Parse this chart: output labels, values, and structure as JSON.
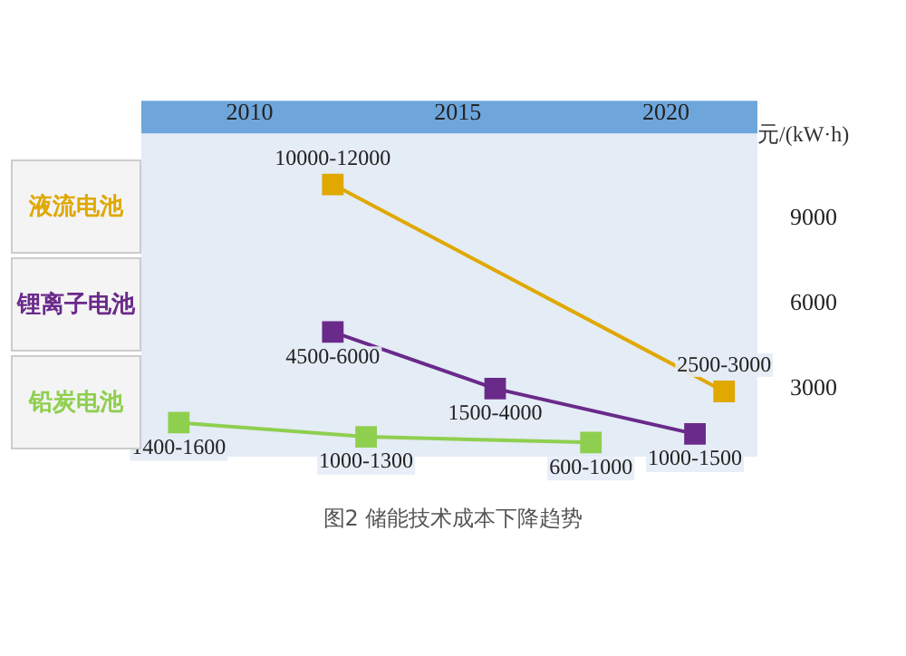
{
  "chart_data": {
    "type": "line",
    "ylabel": "元/(kW·h)",
    "annotations": [
      "图2 储能技术成本下降趋势"
    ],
    "xlim": [
      2007.4,
      2022.2
    ],
    "xticks": [
      2010,
      2015,
      2020
    ],
    "ylim": [
      600,
      12000
    ],
    "yticks": [
      3000,
      6000,
      9000
    ],
    "legend": "left",
    "marker": "square",
    "line_style": "solid",
    "series": [
      {
        "name": "液流电池",
        "color": "#e0a800",
        "x": [
          2012,
          2021.4
        ],
        "values": [
          10200,
          2900
        ],
        "value_labels": [
          "10000-12000",
          "2500-3000"
        ]
      },
      {
        "name": "锂离子电池",
        "color": "#6a2a8a",
        "x": [
          2012,
          2015.9,
          2020.7
        ],
        "values": [
          5000,
          3000,
          1400
        ],
        "value_labels": [
          "4500-6000",
          "1500-4000",
          "1000-1500"
        ]
      },
      {
        "name": "铅炭电池",
        "color": "#8fcf4f",
        "x": [
          2008.3,
          2012.8,
          2018.2
        ],
        "values": [
          1800,
          1300,
          1100
        ],
        "value_labels": [
          "1400-1600",
          "1000-1300",
          "600-1000"
        ]
      }
    ]
  }
}
